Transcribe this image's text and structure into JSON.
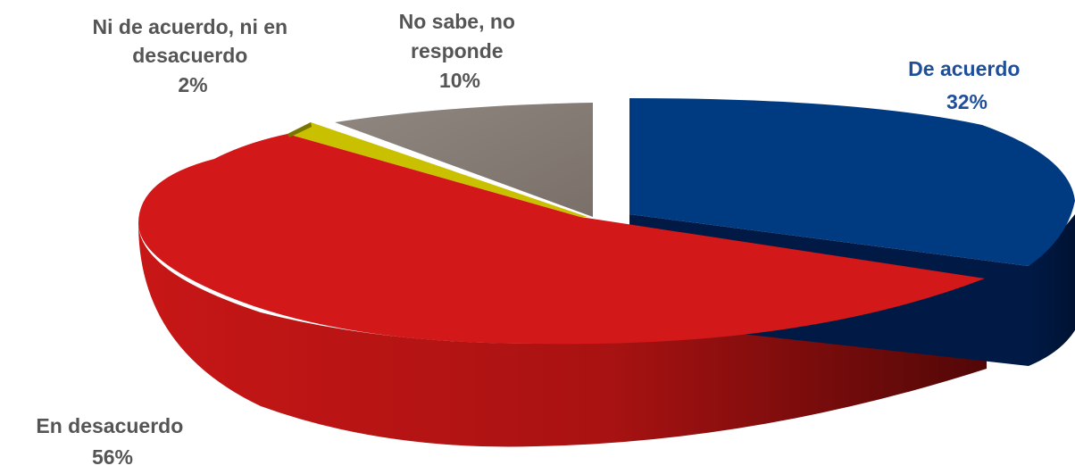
{
  "chart_data": {
    "type": "pie",
    "title": "",
    "slices": [
      {
        "label": "De acuerdo",
        "value": 32,
        "value_label": "32%",
        "color": "#003a80",
        "side_color": "#001a45",
        "exploded": true
      },
      {
        "label": "En desacuerdo",
        "value": 56,
        "value_label": "56%",
        "color": "#d21818",
        "side_color": "#8d0f0f",
        "exploded": false
      },
      {
        "label": "Ni de acuerdo, ni en desacuerdo",
        "value": 2,
        "value_label": "2%",
        "color": "#c9c000",
        "side_color": "#7a7400",
        "exploded": false
      },
      {
        "label": "No sabe, no responde",
        "value": 10,
        "value_label": "10%",
        "color": "#877c74",
        "side_color": "#5d554f",
        "exploded": false
      }
    ],
    "legend": "none",
    "style": "3d-exploded",
    "label_lines": [
      [
        "De acuerdo",
        "32%"
      ],
      [
        "En desacuerdo",
        "56%"
      ],
      [
        "Ni de acuerdo, ni en",
        "desacuerdo",
        "2%"
      ],
      [
        "No sabe, no",
        "responde",
        "10%"
      ]
    ]
  }
}
